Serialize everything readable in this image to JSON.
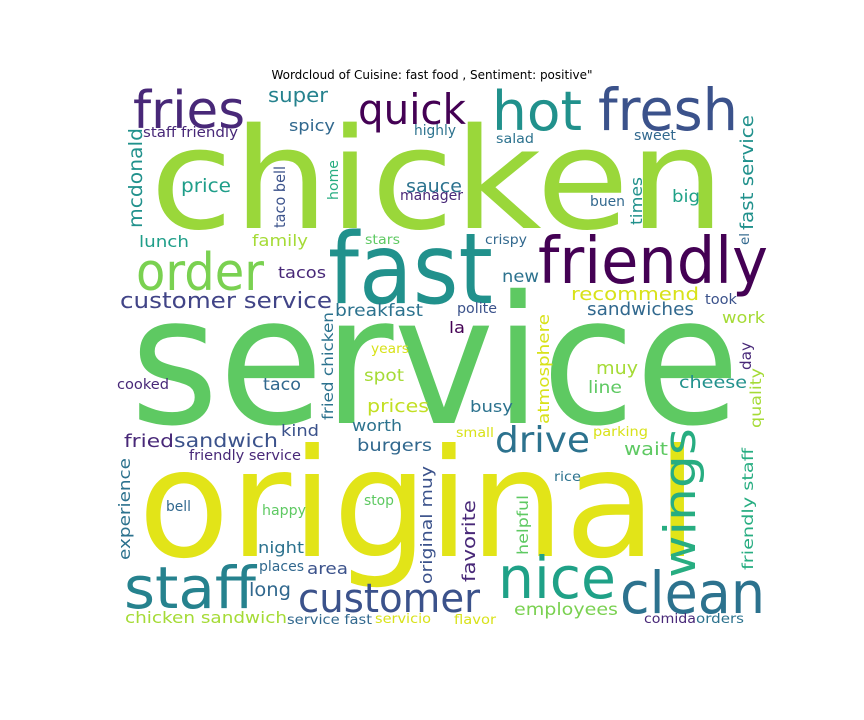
{
  "chart_data": {
    "type": "wordcloud",
    "title": "Wordcloud of Cuisine: fast food , Sentiment: positive\"",
    "words": [
      {
        "text": "service",
        "color": "#5ec962"
      },
      {
        "text": "original",
        "color": "#e2e418"
      },
      {
        "text": "chicken",
        "color": "#9ad73a"
      },
      {
        "text": "fast",
        "color": "#21918c"
      },
      {
        "text": "friendly",
        "color": "#440154"
      },
      {
        "text": "fresh",
        "color": "#3b528b"
      },
      {
        "text": "hot",
        "color": "#21918c"
      },
      {
        "text": "fries",
        "color": "#482878"
      },
      {
        "text": "quick",
        "color": "#440154"
      },
      {
        "text": "order",
        "color": "#7ad151"
      },
      {
        "text": "nice",
        "color": "#1fa187"
      },
      {
        "text": "clean",
        "color": "#2c728e"
      },
      {
        "text": "staff",
        "color": "#26828e"
      },
      {
        "text": "wings",
        "color": "#27ad81"
      },
      {
        "text": "customer",
        "color": "#3b528b"
      },
      {
        "text": "drive",
        "color": "#2c728e"
      },
      {
        "text": "customer service",
        "color": "#414487"
      },
      {
        "text": "super",
        "color": "#26828e"
      },
      {
        "text": "staff friendly",
        "color": "#482878"
      },
      {
        "text": "spicy",
        "color": "#31688e"
      },
      {
        "text": "highly",
        "color": "#2c728e"
      },
      {
        "text": "salad",
        "color": "#2c728e"
      },
      {
        "text": "sweet",
        "color": "#31688e"
      },
      {
        "text": "mcdonald",
        "color": "#21918c"
      },
      {
        "text": "price",
        "color": "#1f9e89"
      },
      {
        "text": "taco bell",
        "color": "#3b528b"
      },
      {
        "text": "home",
        "color": "#27ad81"
      },
      {
        "text": "sauce",
        "color": "#2c728e"
      },
      {
        "text": "manager",
        "color": "#482878"
      },
      {
        "text": "times",
        "color": "#21918c"
      },
      {
        "text": "buen",
        "color": "#31688e"
      },
      {
        "text": "big",
        "color": "#1fa187"
      },
      {
        "text": "fast service",
        "color": "#21918c"
      },
      {
        "text": "lunch",
        "color": "#1f9e89"
      },
      {
        "text": "family",
        "color": "#a5db36"
      },
      {
        "text": "stars",
        "color": "#5ec962"
      },
      {
        "text": "crispy",
        "color": "#31688e"
      },
      {
        "text": "el",
        "color": "#31688e"
      },
      {
        "text": "tacos",
        "color": "#482878"
      },
      {
        "text": "new",
        "color": "#2c728e"
      },
      {
        "text": "recommend",
        "color": "#d8e219"
      },
      {
        "text": "took",
        "color": "#3b528b"
      },
      {
        "text": "breakfast",
        "color": "#2c728e"
      },
      {
        "text": "polite",
        "color": "#3b528b"
      },
      {
        "text": "sandwiches",
        "color": "#31688e"
      },
      {
        "text": "work",
        "color": "#a5db36"
      },
      {
        "text": "la",
        "color": "#440154"
      },
      {
        "text": "fried chicken",
        "color": "#2c728e"
      },
      {
        "text": "years",
        "color": "#d8e219"
      },
      {
        "text": "atmosphere",
        "color": "#d8e219"
      },
      {
        "text": "day",
        "color": "#482878"
      },
      {
        "text": "muy",
        "color": "#a5db36"
      },
      {
        "text": "cooked",
        "color": "#482878"
      },
      {
        "text": "taco",
        "color": "#31688e"
      },
      {
        "text": "spot",
        "color": "#a5db36"
      },
      {
        "text": "line",
        "color": "#5ec962"
      },
      {
        "text": "cheese",
        "color": "#21918c"
      },
      {
        "text": "prices",
        "color": "#c2df23"
      },
      {
        "text": "busy",
        "color": "#2c728e"
      },
      {
        "text": "quality",
        "color": "#a5db36"
      },
      {
        "text": "worth",
        "color": "#2c728e"
      },
      {
        "text": "kind",
        "color": "#3b528b"
      },
      {
        "text": "fried",
        "color": "#482878"
      },
      {
        "text": "sandwich",
        "color": "#3b528b"
      },
      {
        "text": "small",
        "color": "#d8e219"
      },
      {
        "text": "parking",
        "color": "#d8e219"
      },
      {
        "text": "burgers",
        "color": "#31688e"
      },
      {
        "text": "wait",
        "color": "#5ec962"
      },
      {
        "text": "friendly service",
        "color": "#482878"
      },
      {
        "text": "rice",
        "color": "#2c728e"
      },
      {
        "text": "experience",
        "color": "#2c728e"
      },
      {
        "text": "friendly staff",
        "color": "#27ad81"
      },
      {
        "text": "original muy",
        "color": "#3b528b"
      },
      {
        "text": "bell",
        "color": "#31688e"
      },
      {
        "text": "stop",
        "color": "#5ec962"
      },
      {
        "text": "happy",
        "color": "#5ec962"
      },
      {
        "text": "favorite",
        "color": "#482878"
      },
      {
        "text": "helpful",
        "color": "#5ec962"
      },
      {
        "text": "night",
        "color": "#2c728e"
      },
      {
        "text": "places",
        "color": "#31688e"
      },
      {
        "text": "area",
        "color": "#3b528b"
      },
      {
        "text": "long",
        "color": "#31688e"
      },
      {
        "text": "employees",
        "color": "#7ad151"
      },
      {
        "text": "chicken sandwich",
        "color": "#a5db36"
      },
      {
        "text": "service fast",
        "color": "#31688e"
      },
      {
        "text": "servicio",
        "color": "#d8e219"
      },
      {
        "text": "flavor",
        "color": "#d8e219"
      },
      {
        "text": "comida",
        "color": "#482878"
      },
      {
        "text": "orders",
        "color": "#2c728e"
      }
    ]
  }
}
